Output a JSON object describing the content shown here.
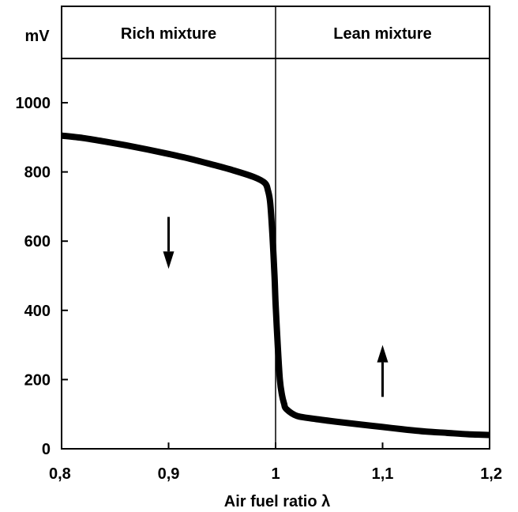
{
  "chart_data": {
    "type": "line",
    "title": "",
    "xlabel": "Air fuel ratio λ",
    "ylabel": "mV",
    "xlim": [
      0.8,
      1.2
    ],
    "ylim": [
      0,
      1000
    ],
    "x_ticks": [
      0.8,
      0.9,
      1.0,
      1.1,
      1.2
    ],
    "x_tick_labels": [
      "0,8",
      "0,9",
      "1",
      "1,1",
      "1,2"
    ],
    "y_ticks": [
      0,
      200,
      400,
      600,
      800,
      1000
    ],
    "y_tick_labels": [
      "0",
      "200",
      "400",
      "600",
      "800",
      "1000"
    ],
    "regions": [
      {
        "label": "Rich mixture",
        "x_range": [
          0.8,
          1.0
        ]
      },
      {
        "label": "Lean mixture",
        "x_range": [
          1.0,
          1.2
        ]
      }
    ],
    "series": [
      {
        "x": [
          0.8,
          0.82,
          0.84,
          0.86,
          0.88,
          0.9,
          0.92,
          0.94,
          0.96,
          0.98,
          0.99,
          0.993,
          0.995,
          0.997,
          0.999,
          1.0,
          1.002,
          1.004,
          1.006,
          1.008,
          1.01,
          1.02,
          1.04,
          1.06,
          1.08,
          1.1,
          1.12,
          1.14,
          1.16,
          1.18,
          1.2
        ],
        "y": [
          905,
          898,
          888,
          877,
          865,
          852,
          838,
          822,
          805,
          785,
          768,
          745,
          710,
          620,
          500,
          420,
          300,
          200,
          155,
          130,
          115,
          95,
          85,
          77,
          70,
          63,
          56,
          50,
          46,
          42,
          40
        ]
      }
    ],
    "arrows": [
      {
        "x": 0.9,
        "from": 670,
        "to": 520,
        "direction": "down"
      },
      {
        "x": 1.1,
        "from": 150,
        "to": 300,
        "direction": "up"
      }
    ],
    "grid": false,
    "colors": {
      "line": "#000000",
      "background": "#ffffff"
    }
  }
}
